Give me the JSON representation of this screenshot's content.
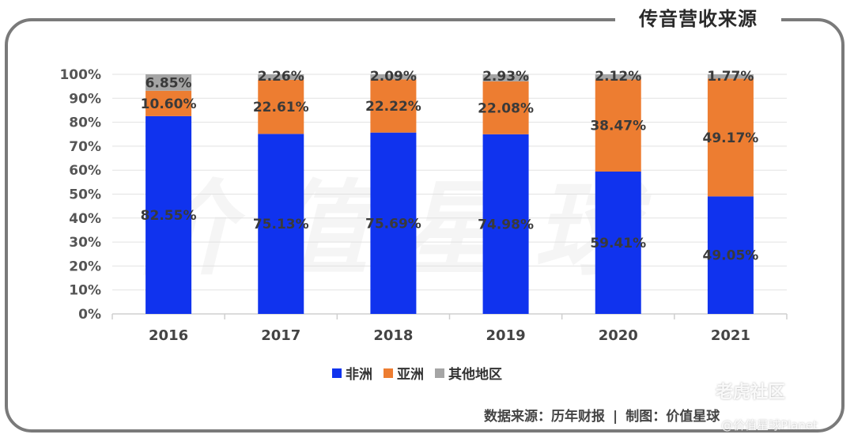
{
  "header": {
    "title": "传音营收来源"
  },
  "chart_data": {
    "type": "bar",
    "stacked": true,
    "categories": [
      "2016",
      "2017",
      "2018",
      "2019",
      "2020",
      "2021"
    ],
    "series": [
      {
        "name": "非洲",
        "color": "#1033ee",
        "values": [
          82.55,
          75.13,
          75.69,
          74.98,
          59.41,
          49.05
        ],
        "labels": [
          "82.55%",
          "75.13%",
          "75.69%",
          "74.98%",
          "59.41%",
          "49.05%"
        ]
      },
      {
        "name": "亚洲",
        "color": "#ed7d31",
        "values": [
          10.6,
          22.61,
          22.22,
          22.08,
          38.47,
          49.17
        ],
        "labels": [
          "10.60%",
          "22.61%",
          "22.22%",
          "22.08%",
          "38.47%",
          "49.17%"
        ]
      },
      {
        "name": "其他地区",
        "color": "#a5a5a5",
        "values": [
          6.85,
          2.26,
          2.09,
          2.93,
          2.12,
          1.77
        ],
        "labels": [
          "6.85%",
          "2.26%",
          "2.09%",
          "2.93%",
          "2.12%",
          "1.77%"
        ]
      }
    ],
    "ylim": [
      0,
      100
    ],
    "yticks": [
      "0%",
      "10%",
      "20%",
      "30%",
      "40%",
      "50%",
      "60%",
      "70%",
      "80%",
      "90%",
      "100%"
    ],
    "grid": true,
    "legend_position": "bottom"
  },
  "footer": {
    "source": "数据来源：历年财报",
    "separator": "|",
    "credit": "制图：价值星球"
  },
  "watermarks": {
    "center": "价值星球",
    "corner_top": "老虎社区",
    "corner_bottom": "@价值星球Planet"
  }
}
